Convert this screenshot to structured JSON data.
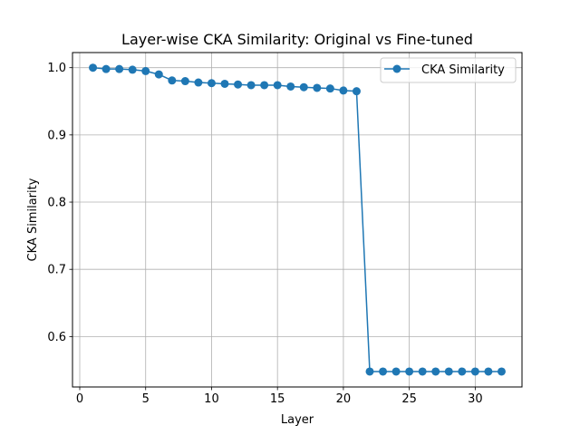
{
  "chart_data": {
    "type": "line",
    "title": "Layer-wise CKA Similarity: Original vs Fine-tuned",
    "xlabel": "Layer",
    "ylabel": "CKA Similarity",
    "xlim": [
      -0.55,
      33.55
    ],
    "ylim": [
      0.525,
      1.0225
    ],
    "xticks": [
      0,
      5,
      10,
      15,
      20,
      25,
      30
    ],
    "yticks": [
      0.6,
      0.7,
      0.8,
      0.9,
      1.0
    ],
    "ytick_labels": [
      "0.6",
      "0.7",
      "0.8",
      "0.9",
      "1.0"
    ],
    "grid": true,
    "legend_position": "top-right",
    "series": [
      {
        "name": "CKA Similarity",
        "color": "#1f77b4",
        "marker": "circle",
        "x": [
          1,
          2,
          3,
          4,
          5,
          6,
          7,
          8,
          9,
          10,
          11,
          12,
          13,
          14,
          15,
          16,
          17,
          18,
          19,
          20,
          21,
          22,
          23,
          24,
          25,
          26,
          27,
          28,
          29,
          30,
          31,
          32
        ],
        "y": [
          1.0,
          0.998,
          0.998,
          0.997,
          0.995,
          0.99,
          0.981,
          0.98,
          0.978,
          0.977,
          0.976,
          0.975,
          0.974,
          0.974,
          0.974,
          0.972,
          0.971,
          0.97,
          0.969,
          0.966,
          0.965,
          0.548,
          0.548,
          0.548,
          0.548,
          0.548,
          0.548,
          0.548,
          0.548,
          0.548,
          0.548,
          0.548
        ]
      }
    ]
  }
}
